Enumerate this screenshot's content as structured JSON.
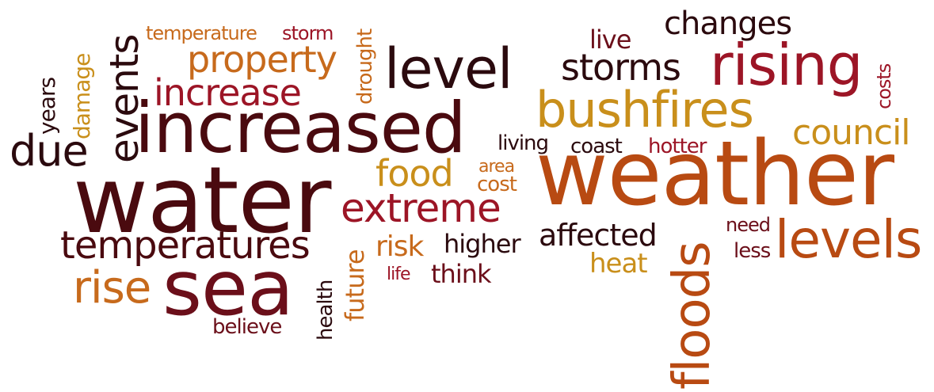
{
  "colors": {
    "dark_brown": "#4a0a0f",
    "maroon": "#6b0f1a",
    "crimson": "#9c1526",
    "burnt_orange": "#b84a12",
    "orange": "#c76a1c",
    "gold": "#c98f1b",
    "near_black": "#2b0a0e"
  },
  "words": {
    "weather": "weather",
    "water": "water",
    "increased": "increased",
    "sea": "sea",
    "rising": "rising",
    "bushfires": "bushfires",
    "level": "level",
    "levels": "levels",
    "floods": "floods",
    "extreme": "extreme",
    "temperatures": "temperatures",
    "increase": "increase",
    "property": "property",
    "events": "events",
    "storms": "storms",
    "changes": "changes",
    "council": "council",
    "rise": "rise",
    "due": "due",
    "food": "food",
    "affected": "affected",
    "higher": "higher",
    "risk": "risk",
    "think": "think",
    "heat": "heat",
    "coast": "coast",
    "hotter": "hotter",
    "living": "living",
    "area": "area",
    "cost": "cost",
    "live": "live",
    "need": "need",
    "less": "less",
    "life": "life",
    "believe": "believe",
    "health": "health",
    "future": "future",
    "drought": "drought",
    "damage": "damage",
    "years": "years",
    "temperature": "temperature",
    "storm": "storm",
    "costs": "costs"
  }
}
